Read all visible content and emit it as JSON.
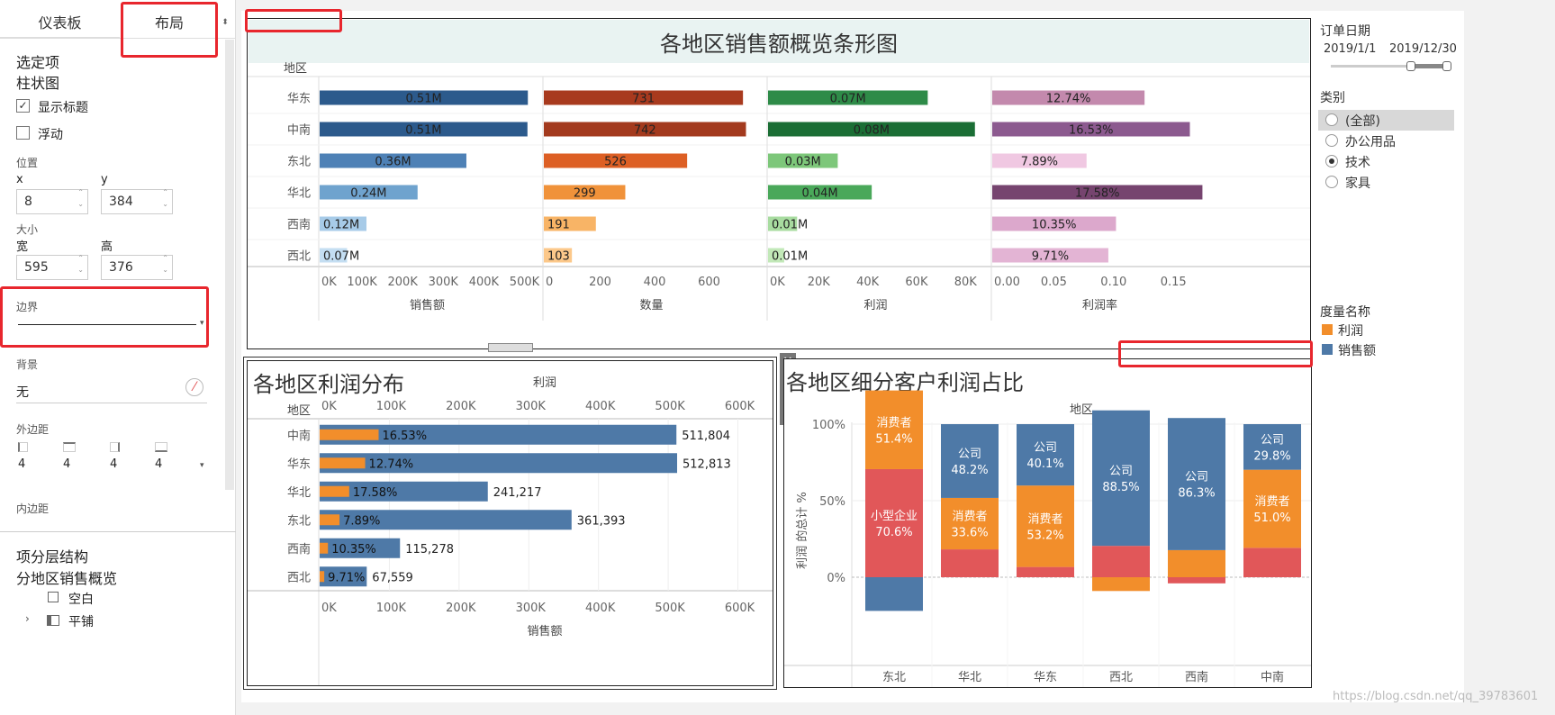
{
  "left_panel": {
    "tabs": [
      "仪表板",
      "布局"
    ],
    "selected_label": "选定项",
    "selected_item": "柱状图",
    "show_title_label": "显示标题",
    "floating_label": "浮动",
    "position_label": "位置",
    "x_label": "x",
    "y_label": "y",
    "x_value": "8",
    "y_value": "384",
    "size_label": "大小",
    "width_label": "宽",
    "height_label": "高",
    "width_value": "595",
    "height_value": "376",
    "border_label": "边界",
    "background_label": "背景",
    "background_value": "无",
    "outer_padding_label": "外边距",
    "outer_padding_values": [
      "4",
      "4",
      "4",
      "4"
    ],
    "inner_padding_label": "内边距",
    "hierarchy_label": "项分层结构",
    "hierarchy_root": "分地区销售概览",
    "hierarchy_items": [
      "空白",
      "平铺"
    ]
  },
  "filters": {
    "order_date_label": "订单日期",
    "date_start": "2019/1/1",
    "date_end": "2019/12/30",
    "category_label": "类别",
    "category_options": [
      "(全部)",
      "办公用品",
      "技术",
      "家具"
    ],
    "category_selected": "技术",
    "measure_label": "度量名称",
    "legend": [
      {
        "name": "利润",
        "color": "#f28e2b"
      },
      {
        "name": "销售额",
        "color": "#4e79a7"
      }
    ]
  },
  "watermark": "https://blog.csdn.net/qq_39783601",
  "chart_data": [
    {
      "type": "bar",
      "title": "各地区销售额概览条形图",
      "row_header": "地区",
      "categories": [
        "华东",
        "中南",
        "东北",
        "华北",
        "西南",
        "西北"
      ],
      "panels": [
        {
          "name": "销售额",
          "axis_ticks": [
            "0K",
            "100K",
            "200K",
            "300K",
            "400K",
            "500K"
          ],
          "xlim": [
            0,
            530000
          ],
          "values": [
            512813,
            511804,
            361393,
            241217,
            115278,
            67559
          ],
          "labels": [
            "0.51M",
            "0.51M",
            "0.36M",
            "0.24M",
            "0.12M",
            "0.07M"
          ],
          "colors": [
            "#2c5a8c",
            "#2c5a8c",
            "#4e81b6",
            "#6fa3ce",
            "#a7cbe8",
            "#c4def2"
          ]
        },
        {
          "name": "数量",
          "axis_ticks": [
            "0",
            "200",
            "400",
            "600"
          ],
          "xlim": [
            0,
            790
          ],
          "values": [
            731,
            742,
            526,
            299,
            191,
            103
          ],
          "labels": [
            "731",
            "742",
            "526",
            "299",
            "191",
            "103"
          ],
          "colors": [
            "#a83a1e",
            "#a33a1e",
            "#dd5f24",
            "#f0923a",
            "#f8b466",
            "#fcc88a"
          ]
        },
        {
          "name": "利润",
          "axis_ticks": [
            "0K",
            "20K",
            "40K",
            "60K",
            "80K"
          ],
          "xlim": [
            0,
            88000
          ],
          "values": [
            65300,
            84600,
            28500,
            42400,
            11900,
            6600
          ],
          "labels": [
            "0.07M",
            "0.08M",
            "0.03M",
            "0.04M",
            "0.01M",
            "0.01M"
          ],
          "colors": [
            "#2e8b48",
            "#1b6e35",
            "#7dc77a",
            "#4aa85a",
            "#a8dca0",
            "#c2e8b8"
          ]
        },
        {
          "name": "利润率",
          "axis_ticks": [
            "0.00",
            "0.05",
            "0.10",
            "0.15"
          ],
          "xlim": [
            0,
            0.18
          ],
          "values": [
            0.1274,
            0.1653,
            0.0789,
            0.1758,
            0.1035,
            0.0971
          ],
          "labels": [
            "12.74%",
            "16.53%",
            "7.89%",
            "17.58%",
            "10.35%",
            "9.71%"
          ],
          "colors": [
            "#c389ad",
            "#8c5a8f",
            "#f0c8e2",
            "#76446f",
            "#dca8cc",
            "#e3b4d4"
          ]
        }
      ]
    },
    {
      "type": "bar",
      "title": "各地区利润分布",
      "row_header": "地区",
      "top_axis_label": "利润",
      "xlabel": "销售额",
      "axis_ticks": [
        "0K",
        "100K",
        "200K",
        "300K",
        "400K",
        "500K",
        "600K"
      ],
      "xlim": [
        0,
        620000
      ],
      "categories": [
        "中南",
        "华东",
        "华北",
        "东北",
        "西南",
        "西北"
      ],
      "sales": [
        511804,
        512813,
        241217,
        361393,
        115278,
        67559
      ],
      "sales_labels": [
        "511,804",
        "512,813",
        "241,217",
        "361,393",
        "115,278",
        "67,559"
      ],
      "profit": [
        84600,
        65300,
        42400,
        28500,
        11900,
        6600
      ],
      "profit_rate_labels": [
        "16.53%",
        "12.74%",
        "17.58%",
        "7.89%",
        "10.35%",
        "9.71%"
      ]
    },
    {
      "type": "bar",
      "title": "各地区细分客户利润占比",
      "top_label": "地区",
      "ylabel": "利润 的总计 %",
      "y_ticks": [
        "100%",
        "50%",
        "0%"
      ],
      "categories": [
        "东北",
        "华北",
        "华东",
        "西北",
        "西南",
        "中南"
      ],
      "stacks": [
        [
          {
            "seg": "公司",
            "value": -22,
            "color": "#4e79a7"
          },
          {
            "seg": "小型企业",
            "value": 70.6,
            "color": "#e15759",
            "label": "小型企业\n70.6%"
          },
          {
            "seg": "消费者",
            "value": 51.4,
            "color": "#f28e2b",
            "label": "消费者\n51.4%"
          }
        ],
        [
          {
            "seg": "小型企业",
            "value": 18.2,
            "color": "#e15759"
          },
          {
            "seg": "消费者",
            "value": 33.6,
            "color": "#f28e2b",
            "label": "消费者\n33.6%"
          },
          {
            "seg": "公司",
            "value": 48.2,
            "color": "#4e79a7",
            "label": "公司\n48.2%"
          }
        ],
        [
          {
            "seg": "小型企业",
            "value": 6.7,
            "color": "#e15759"
          },
          {
            "seg": "消费者",
            "value": 53.2,
            "color": "#f28e2b",
            "label": "消费者\n53.2%"
          },
          {
            "seg": "公司",
            "value": 40.1,
            "color": "#4e79a7",
            "label": "公司\n40.1%"
          }
        ],
        [
          {
            "seg": "消费者",
            "value": -9,
            "color": "#f28e2b"
          },
          {
            "seg": "小型企业",
            "value": 20.5,
            "color": "#e15759"
          },
          {
            "seg": "公司",
            "value": 88.5,
            "color": "#4e79a7",
            "label": "公司\n88.5%"
          }
        ],
        [
          {
            "seg": "小型企业",
            "value": -4,
            "color": "#e15759"
          },
          {
            "seg": "消费者",
            "value": 17.7,
            "color": "#f28e2b"
          },
          {
            "seg": "公司",
            "value": 86.3,
            "color": "#4e79a7",
            "label": "公司\n86.3%"
          }
        ],
        [
          {
            "seg": "小型企业",
            "value": 19.2,
            "color": "#e15759"
          },
          {
            "seg": "消费者",
            "value": 51.0,
            "color": "#f28e2b",
            "label": "消费者\n51.0%"
          },
          {
            "seg": "公司",
            "value": 29.8,
            "color": "#4e79a7",
            "label": "公司\n29.8%"
          }
        ]
      ]
    }
  ]
}
